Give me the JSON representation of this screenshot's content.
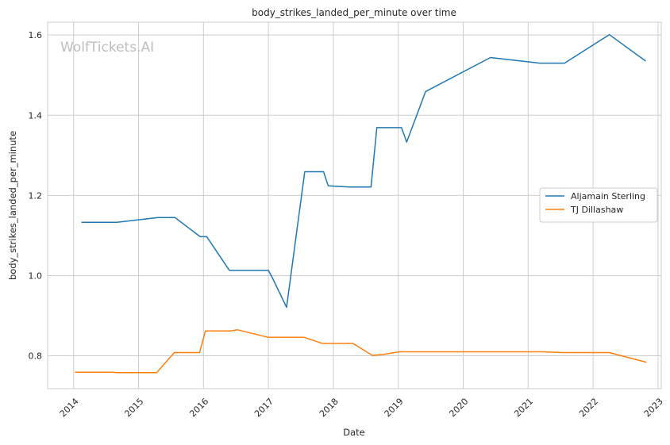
{
  "chart_data": {
    "type": "line",
    "title": "body_strikes_landed_per_minute over time",
    "xlabel": "Date",
    "ylabel": "body_strikes_landed_per_minute",
    "watermark": "WolfTickets.AI",
    "xlim": [
      2013.6,
      2023.05
    ],
    "ylim": [
      0.718,
      1.632
    ],
    "x_ticks": [
      2014,
      2015,
      2016,
      2017,
      2018,
      2019,
      2020,
      2021,
      2022,
      2023
    ],
    "x_tick_labels": [
      "2014",
      "2015",
      "2016",
      "2017",
      "2018",
      "2019",
      "2020",
      "2021",
      "2022",
      "2023"
    ],
    "y_ticks": [
      0.8,
      1.0,
      1.2,
      1.4,
      1.6
    ],
    "y_tick_labels": [
      "0.8",
      "1.0",
      "1.2",
      "1.4",
      "1.6"
    ],
    "grid": true,
    "legend_position": "center-right",
    "series": [
      {
        "name": "Aljamain Sterling",
        "color": "#1f77b4",
        "points": [
          [
            2014.12,
            1.133
          ],
          [
            2014.67,
            1.133
          ],
          [
            2015.3,
            1.145
          ],
          [
            2015.56,
            1.145
          ],
          [
            2015.95,
            1.097
          ],
          [
            2016.05,
            1.097
          ],
          [
            2016.4,
            1.013
          ],
          [
            2017.0,
            1.013
          ],
          [
            2017.06,
            0.995
          ],
          [
            2017.28,
            0.921
          ],
          [
            2017.56,
            1.259
          ],
          [
            2017.85,
            1.259
          ],
          [
            2017.92,
            1.224
          ],
          [
            2018.25,
            1.221
          ],
          [
            2018.58,
            1.221
          ],
          [
            2018.67,
            1.369
          ],
          [
            2019.05,
            1.369
          ],
          [
            2019.13,
            1.333
          ],
          [
            2019.42,
            1.459
          ],
          [
            2020.42,
            1.544
          ],
          [
            2021.18,
            1.53
          ],
          [
            2021.56,
            1.53
          ],
          [
            2022.25,
            1.601
          ],
          [
            2022.81,
            1.535
          ]
        ]
      },
      {
        "name": "TJ Dillashaw",
        "color": "#ff7f0e",
        "points": [
          [
            2014.02,
            0.759
          ],
          [
            2014.6,
            0.759
          ],
          [
            2014.67,
            0.758
          ],
          [
            2015.28,
            0.758
          ],
          [
            2015.55,
            0.808
          ],
          [
            2015.94,
            0.808
          ],
          [
            2016.03,
            0.862
          ],
          [
            2016.42,
            0.862
          ],
          [
            2016.52,
            0.865
          ],
          [
            2017.0,
            0.846
          ],
          [
            2017.55,
            0.846
          ],
          [
            2017.83,
            0.831
          ],
          [
            2018.3,
            0.831
          ],
          [
            2018.6,
            0.801
          ],
          [
            2018.75,
            0.803
          ],
          [
            2019.02,
            0.81
          ],
          [
            2021.2,
            0.81
          ],
          [
            2021.55,
            0.808
          ],
          [
            2022.25,
            0.808
          ],
          [
            2022.82,
            0.784
          ]
        ]
      }
    ]
  }
}
